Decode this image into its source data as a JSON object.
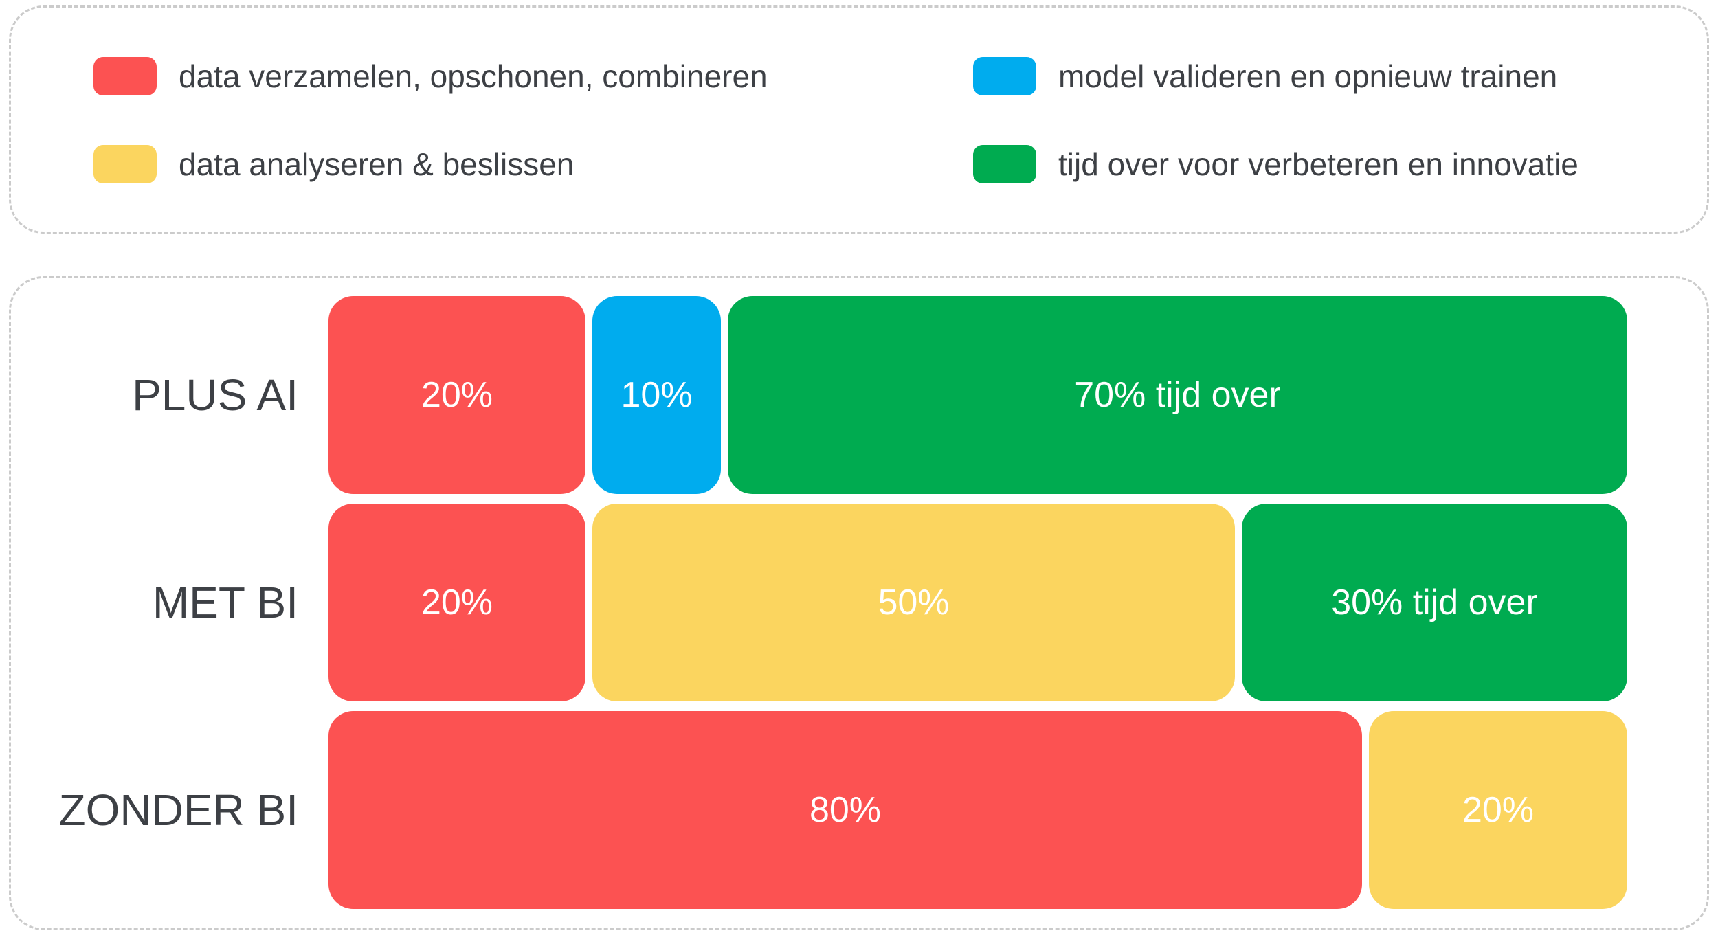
{
  "colors": {
    "red": "#FC5252",
    "yellow": "#FBD55F",
    "blue": "#00ACEE",
    "green": "#00AB50",
    "label_text": "#3D4045",
    "bar_text": "#FFFFFF",
    "dashed_border": "#CBCBCB",
    "background": "#FFFFFF"
  },
  "legend": {
    "items": [
      {
        "id": "red",
        "label": "data verzamelen, opschonen, combineren",
        "color": "#FC5252"
      },
      {
        "id": "blue",
        "label": "model valideren en opnieuw trainen",
        "color": "#00ACEE"
      },
      {
        "id": "yellow",
        "label": "data analyseren & beslissen",
        "color": "#FBD55F"
      },
      {
        "id": "green",
        "label": "tijd over voor verbeteren en innovatie",
        "color": "#00AB50"
      }
    ]
  },
  "chart_data": {
    "type": "bar",
    "orientation": "horizontal",
    "stacked": true,
    "units": "percent",
    "grid": false,
    "axis": "none",
    "legend_position": "top",
    "categories": [
      "PLUS AI",
      "MET BI",
      "ZONDER BI"
    ],
    "series": [
      {
        "name": "data verzamelen, opschonen, combineren",
        "color": "#FC5252",
        "values": [
          20,
          20,
          80
        ]
      },
      {
        "name": "data analyseren & beslissen",
        "color": "#FBD55F",
        "values": [
          0,
          50,
          20
        ]
      },
      {
        "name": "model valideren en opnieuw trainen",
        "color": "#00ACEE",
        "values": [
          10,
          0,
          0
        ]
      },
      {
        "name": "tijd over voor verbeteren en innovatie",
        "color": "#00AB50",
        "values": [
          70,
          30,
          0
        ]
      }
    ],
    "rows": [
      {
        "category": "PLUS AI",
        "segments": [
          {
            "series": "data verzamelen, opschonen, combineren",
            "value": 20,
            "label": "20%",
            "color": "#FC5252"
          },
          {
            "series": "model valideren en opnieuw trainen",
            "value": 10,
            "label": "10%",
            "color": "#00ACEE"
          },
          {
            "series": "tijd over voor verbeteren en innovatie",
            "value": 70,
            "label": "70% tijd over",
            "color": "#00AB50"
          }
        ]
      },
      {
        "category": "MET BI",
        "segments": [
          {
            "series": "data verzamelen, opschonen, combineren",
            "value": 20,
            "label": "20%",
            "color": "#FC5252"
          },
          {
            "series": "data analyseren & beslissen",
            "value": 50,
            "label": "50%",
            "color": "#FBD55F"
          },
          {
            "series": "tijd over voor verbeteren en innovatie",
            "value": 30,
            "label": "30% tijd over",
            "color": "#00AB50"
          }
        ]
      },
      {
        "category": "ZONDER BI",
        "segments": [
          {
            "series": "data verzamelen, opschonen, combineren",
            "value": 80,
            "label": "80%",
            "color": "#FC5252"
          },
          {
            "series": "data analyseren & beslissen",
            "value": 20,
            "label": "20%",
            "color": "#FBD55F"
          }
        ]
      }
    ]
  }
}
